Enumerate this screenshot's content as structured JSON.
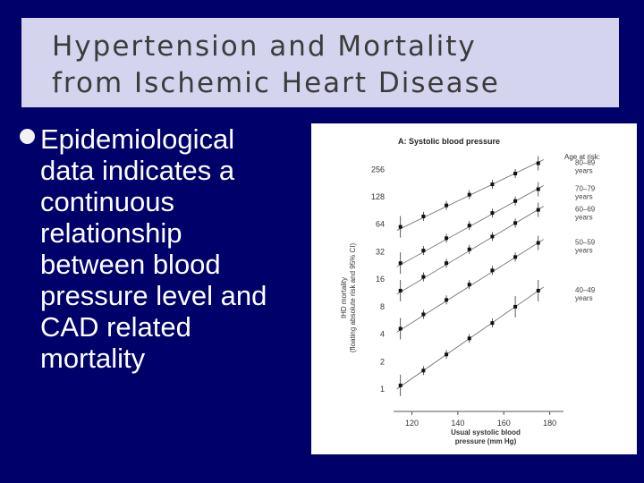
{
  "slide": {
    "title_lines": [
      "Hypertension and Mortality",
      "from Ischemic Heart Disease"
    ],
    "bullet_lines": [
      "Epidemiological",
      "data indicates a",
      "continuous",
      "relationship",
      "between blood",
      "pressure level and",
      "CAD related",
      "mortality"
    ]
  },
  "chart_data": {
    "type": "scatter",
    "title": "A: Systolic blood pressure",
    "xlabel": "Usual systolic blood pressure (mm Hg)",
    "xlabel_lines": [
      "Usual systolic blood",
      "pressure (mm Hg)"
    ],
    "ylabel": "IHD mortality (floating absolute risk and 95% CI)",
    "ylabel_lines": [
      "IHD mortality",
      "(floating absolute risk and 95% CI)"
    ],
    "y_scale": "log2",
    "xlim": [
      112,
      186
    ],
    "ylim": [
      0.8,
      330
    ],
    "x_ticks": [
      120,
      140,
      160,
      180
    ],
    "x_tick_labels": [
      "120",
      "140",
      "160",
      "180"
    ],
    "y_ticks": [
      1,
      2,
      4,
      8,
      16,
      32,
      64,
      128,
      256
    ],
    "y_tick_labels": [
      "1",
      "2",
      "4",
      "8",
      "16",
      "32",
      "64",
      "128",
      "256"
    ],
    "legend_title": "Age at risk:",
    "series": [
      {
        "name": "80-89 years",
        "label_lines": [
          "80–89",
          "years"
        ],
        "x": [
          115,
          125,
          135,
          145,
          155,
          165,
          175
        ],
        "y": [
          60,
          78,
          103,
          135,
          175,
          230,
          298
        ]
      },
      {
        "name": "70-79 years",
        "label_lines": [
          "70–79",
          "years"
        ],
        "x": [
          115,
          125,
          135,
          145,
          155,
          165,
          175
        ],
        "y": [
          24,
          33,
          45,
          62,
          85,
          115,
          155
        ]
      },
      {
        "name": "60-69 years",
        "label_lines": [
          "60–69",
          "years"
        ],
        "x": [
          115,
          125,
          135,
          145,
          155,
          165,
          175
        ],
        "y": [
          12,
          17,
          24,
          34,
          47,
          66,
          92
        ]
      },
      {
        "name": "50-59 years",
        "label_lines": [
          "50–59",
          "years"
        ],
        "x": [
          115,
          125,
          135,
          145,
          155,
          165,
          175
        ],
        "y": [
          4.6,
          6.6,
          9.5,
          14,
          20,
          28,
          40
        ]
      },
      {
        "name": "40-49 years",
        "label_lines": [
          "40–49",
          "years"
        ],
        "x": [
          115,
          125,
          135,
          145,
          155,
          165,
          175
        ],
        "y": [
          1.1,
          1.6,
          2.4,
          3.6,
          5.3,
          8,
          12
        ]
      }
    ]
  }
}
